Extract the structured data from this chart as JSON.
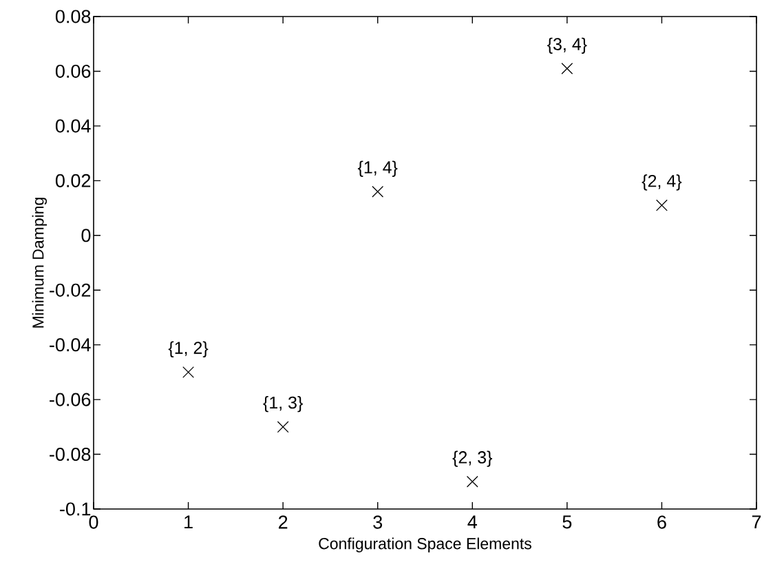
{
  "chart_data": {
    "type": "scatter",
    "xlabel": "Configuration Space Elements",
    "ylabel": "Minimum Damping",
    "x": [
      1,
      2,
      3,
      4,
      5,
      6
    ],
    "values": [
      -0.05,
      -0.07,
      0.016,
      -0.09,
      0.061,
      0.011
    ],
    "color": "#000000",
    "marker": "cross",
    "xlim": [
      0,
      7
    ],
    "ylim": [
      -0.1,
      0.08
    ],
    "xticks": [
      0,
      1,
      2,
      3,
      4,
      5,
      6,
      7
    ],
    "yticks": [
      -0.1,
      -0.08,
      -0.06,
      -0.04,
      -0.02,
      0,
      0.02,
      0.04,
      0.06,
      0.08
    ],
    "annotations": [
      {
        "text": "{1, 2}",
        "x": 1,
        "y": -0.05
      },
      {
        "text": "{1, 3}",
        "x": 2,
        "y": -0.07
      },
      {
        "text": "{1, 4}",
        "x": 3,
        "y": 0.016
      },
      {
        "text": "{2, 3}",
        "x": 4,
        "y": -0.09
      },
      {
        "text": "{3, 4}",
        "x": 5,
        "y": 0.061
      },
      {
        "text": "{2, 4}",
        "x": 6,
        "y": 0.011
      }
    ]
  }
}
